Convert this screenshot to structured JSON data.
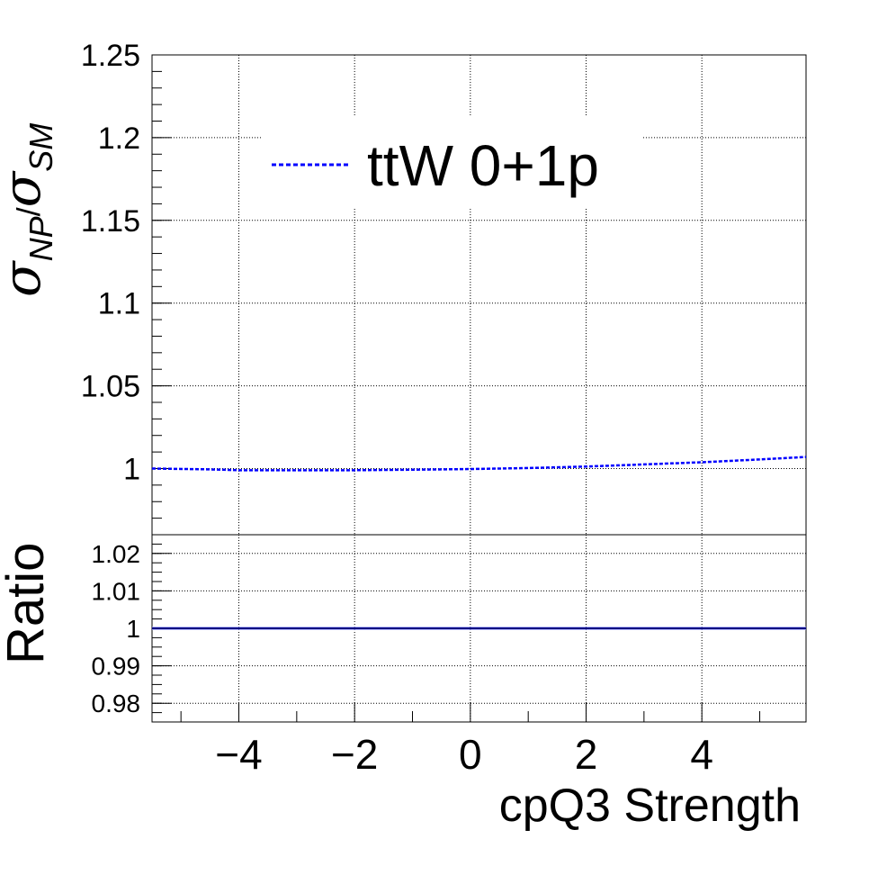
{
  "chart_data": [
    {
      "type": "line",
      "panel": "main",
      "ylabel_main": "σ",
      "ylabel_sub_num": "NP",
      "ylabel_slash": "/",
      "ylabel_sub_den": "SM",
      "xlim": [
        -5.5,
        5.8
      ],
      "ylim": [
        0.96,
        1.25
      ],
      "yticks": [
        1,
        1.05,
        1.1,
        1.15,
        1.2,
        1.25
      ],
      "ytick_labels": [
        "1",
        "1.05",
        "1.1",
        "1.15",
        "1.2",
        "1.25"
      ],
      "grid": true,
      "legend_position": "top",
      "series": [
        {
          "name": "ttW 0+1p",
          "color": "#0000ff",
          "line_style": "dashed",
          "x": [
            -5.5,
            -4.5,
            -4.0,
            -3.0,
            -2.0,
            -1.0,
            0.0,
            1.0,
            2.0,
            3.0,
            4.0,
            5.0,
            5.8
          ],
          "y": [
            1.0,
            0.9995,
            0.999,
            0.999,
            0.999,
            0.9993,
            0.9997,
            1.0003,
            1.0012,
            1.0025,
            1.0038,
            1.0055,
            1.007
          ]
        }
      ]
    },
    {
      "type": "line",
      "panel": "ratio",
      "ylabel": "Ratio",
      "xlabel": "cpQ3 Strength",
      "xlim": [
        -5.5,
        5.8
      ],
      "ylim": [
        0.975,
        1.025
      ],
      "xticks": [
        -4,
        -2,
        0,
        2,
        4
      ],
      "xtick_labels": [
        "−4",
        "−2",
        "0",
        "2",
        "4"
      ],
      "yticks": [
        0.98,
        0.99,
        1,
        1.01,
        1.02
      ],
      "ytick_labels": [
        "0.98",
        "0.99",
        "1",
        "1.01",
        "1.02"
      ],
      "grid": true,
      "series": [
        {
          "color": "#000080",
          "x": [
            -5.5,
            5.8
          ],
          "y": [
            1.0,
            1.0
          ]
        }
      ]
    }
  ]
}
